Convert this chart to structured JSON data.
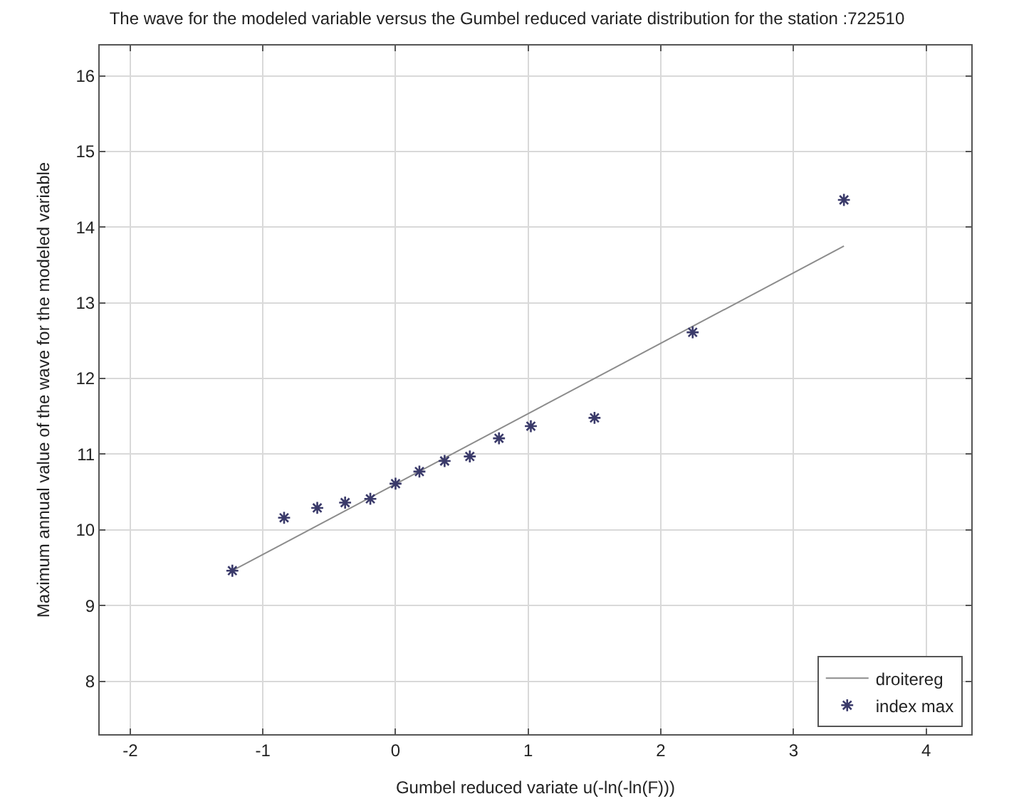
{
  "chart_data": {
    "type": "scatter",
    "title": "The wave for the modeled variable versus the Gumbel reduced variate distribution for the station :722510",
    "xlabel": "Gumbel reduced variate u(-ln(-ln(F)))",
    "ylabel": "Maximum annual value of the wave for the modeled variable",
    "series": [
      {
        "name": "droitereg",
        "type": "line",
        "color": "#8c8c8c",
        "marker": "none",
        "x": [
          -1.23,
          3.38
        ],
        "values": [
          9.46,
          13.75
        ]
      },
      {
        "name": "index max",
        "color": "#3a3a6a",
        "marker": "cross",
        "x": [
          -1.23,
          -0.84,
          -0.59,
          -0.38,
          -0.19,
          0.0,
          0.18,
          0.37,
          0.56,
          0.78,
          1.02,
          1.5,
          2.24,
          3.38
        ],
        "values": [
          9.46,
          10.16,
          10.29,
          10.36,
          10.41,
          10.61,
          10.77,
          10.91,
          10.97,
          11.21,
          11.37,
          11.48,
          12.61,
          14.36
        ]
      }
    ],
    "xlim": [
      -2.23,
      4.34
    ],
    "xticks": [
      -2,
      -1,
      0,
      1,
      2,
      3,
      4
    ],
    "ylim": [
      7.3,
      16.4
    ],
    "yticks": [
      8,
      9,
      10,
      11,
      12,
      13,
      14,
      15,
      16
    ],
    "grid": true,
    "legend": "bottom right"
  }
}
